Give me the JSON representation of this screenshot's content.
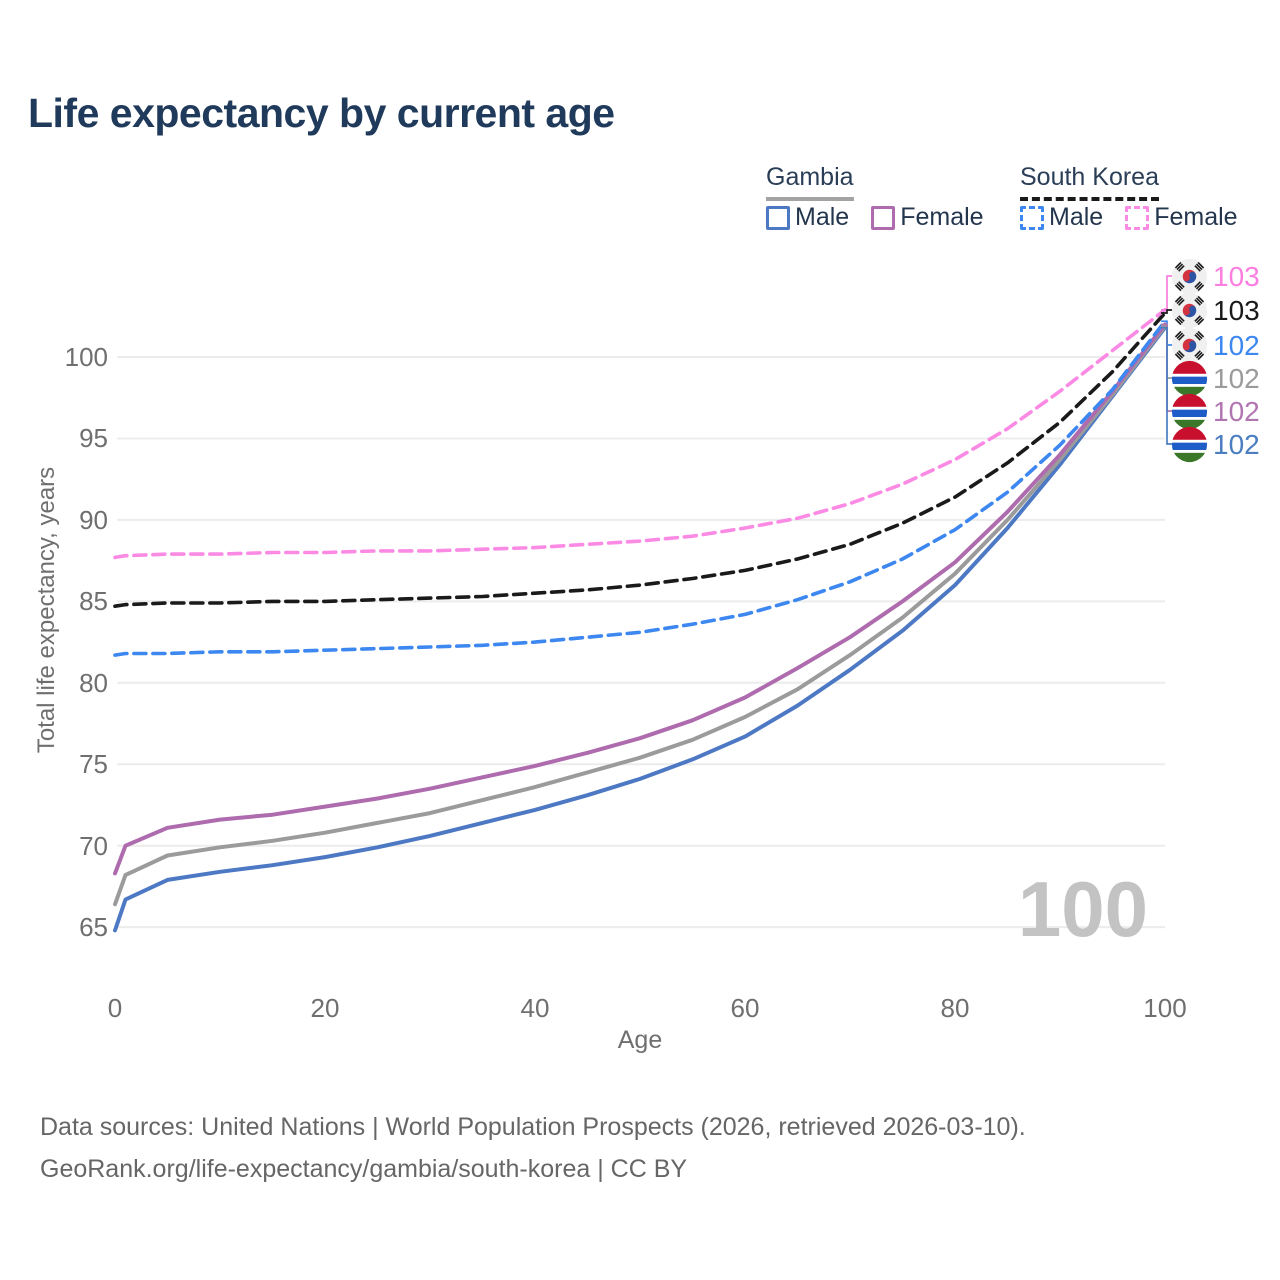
{
  "title": "Life expectancy by current age",
  "legend": {
    "gambia": {
      "title": "Gambia",
      "male": "Male",
      "female": "Female"
    },
    "south_korea": {
      "title": "South Korea",
      "male": "Male",
      "female": "Female"
    }
  },
  "watermark": "100",
  "footer": {
    "line1": "Data sources: United Nations | World Population Prospects (2026, retrieved 2026-03-10).",
    "line2": "GeoRank.org/life-expectancy/gambia/south-korea | CC BY"
  },
  "chart_data": {
    "type": "line",
    "title": "Life expectancy by current age",
    "xlabel": "Age",
    "ylabel": "Total life expectancy, years",
    "xticks": [
      0,
      20,
      40,
      60,
      80,
      100
    ],
    "yticks": [
      65,
      70,
      75,
      80,
      85,
      90,
      95,
      100
    ],
    "xlim": [
      0,
      100
    ],
    "ylim": [
      63,
      104
    ],
    "grid": "horizontal",
    "legend_position": "top-right",
    "x": [
      0,
      1,
      5,
      10,
      15,
      20,
      25,
      30,
      35,
      40,
      45,
      50,
      55,
      60,
      65,
      70,
      75,
      80,
      85,
      90,
      95,
      100
    ],
    "series": [
      {
        "id": "gm_male",
        "name": "Gambia Male",
        "country": "Gambia",
        "sex": "male",
        "color": "#4d79c4",
        "dash": false,
        "values": [
          64.8,
          66.7,
          67.9,
          68.4,
          68.8,
          69.3,
          69.9,
          70.6,
          71.4,
          72.2,
          73.1,
          74.1,
          75.3,
          76.7,
          78.6,
          80.8,
          83.2,
          86.0,
          89.5,
          93.4,
          97.6,
          101.8
        ]
      },
      {
        "id": "gm_total",
        "name": "Gambia Total",
        "country": "Gambia",
        "sex": "both",
        "color": "#9b9b9b",
        "dash": false,
        "values": [
          66.4,
          68.2,
          69.4,
          69.9,
          70.3,
          70.8,
          71.4,
          72.0,
          72.8,
          73.6,
          74.5,
          75.4,
          76.5,
          77.9,
          79.6,
          81.7,
          84.0,
          86.7,
          90.0,
          93.7,
          97.7,
          101.9
        ]
      },
      {
        "id": "gm_female",
        "name": "Gambia Female",
        "country": "Gambia",
        "sex": "female",
        "color": "#ae6bae",
        "dash": false,
        "values": [
          68.3,
          70.0,
          71.1,
          71.6,
          71.9,
          72.4,
          72.9,
          73.5,
          74.2,
          74.9,
          75.7,
          76.6,
          77.7,
          79.1,
          80.9,
          82.8,
          85.0,
          87.4,
          90.5,
          94.0,
          97.9,
          102.0
        ]
      },
      {
        "id": "sk_male",
        "name": "South Korea Male",
        "country": "South Korea",
        "sex": "male",
        "color": "#3d87f0",
        "dash": true,
        "values": [
          81.7,
          81.8,
          81.8,
          81.9,
          81.9,
          82.0,
          82.1,
          82.2,
          82.3,
          82.5,
          82.8,
          83.1,
          83.6,
          84.2,
          85.1,
          86.2,
          87.6,
          89.4,
          91.7,
          94.6,
          98.0,
          102.2
        ]
      },
      {
        "id": "sk_total",
        "name": "South Korea Total",
        "country": "South Korea",
        "sex": "both",
        "color": "#1a1a1a",
        "dash": true,
        "values": [
          84.7,
          84.8,
          84.9,
          84.9,
          85.0,
          85.0,
          85.1,
          85.2,
          85.3,
          85.5,
          85.7,
          86.0,
          86.4,
          86.9,
          87.6,
          88.5,
          89.8,
          91.4,
          93.5,
          96.0,
          99.1,
          102.7
        ]
      },
      {
        "id": "sk_female",
        "name": "South Korea Female",
        "country": "South Korea",
        "sex": "female",
        "color": "#fb8ae4",
        "dash": true,
        "values": [
          87.7,
          87.8,
          87.9,
          87.9,
          88.0,
          88.0,
          88.1,
          88.1,
          88.2,
          88.3,
          88.5,
          88.7,
          89.0,
          89.5,
          90.1,
          91.0,
          92.2,
          93.7,
          95.6,
          97.9,
          100.4,
          102.9
        ]
      }
    ],
    "end_labels": [
      {
        "series": "sk_female",
        "flag": "kr",
        "text": "103",
        "color": "#fb7ee0"
      },
      {
        "series": "sk_total",
        "flag": "kr",
        "text": "103",
        "color": "#1a1a1a"
      },
      {
        "series": "sk_male",
        "flag": "kr",
        "text": "102",
        "color": "#3d87f0"
      },
      {
        "series": "gm_total",
        "flag": "gm",
        "text": "102",
        "color": "#9b9b9b"
      },
      {
        "series": "gm_female",
        "flag": "gm",
        "text": "102",
        "color": "#b176b1"
      },
      {
        "series": "gm_male",
        "flag": "gm",
        "text": "102",
        "color": "#4a7ec0"
      }
    ]
  }
}
